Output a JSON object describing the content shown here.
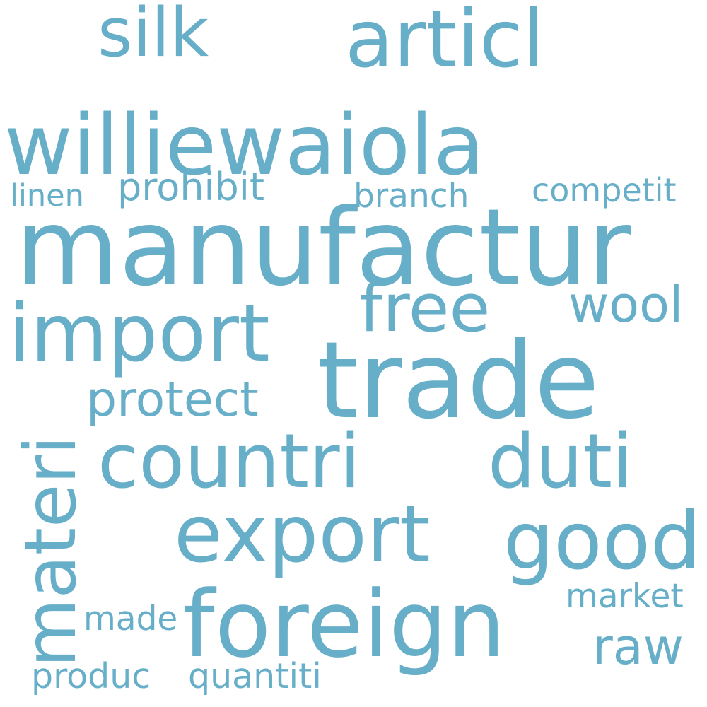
{
  "word_cloud": {
    "color": "#67aec8",
    "words": [
      {
        "text": "manufactur",
        "orientation": "horizontal"
      },
      {
        "text": "williewaiola",
        "orientation": "horizontal"
      },
      {
        "text": "trade",
        "orientation": "horizontal"
      },
      {
        "text": "foreign",
        "orientation": "horizontal"
      },
      {
        "text": "export",
        "orientation": "horizontal"
      },
      {
        "text": "import",
        "orientation": "horizontal"
      },
      {
        "text": "countri",
        "orientation": "horizontal"
      },
      {
        "text": "articl",
        "orientation": "horizontal"
      },
      {
        "text": "good",
        "orientation": "horizontal"
      },
      {
        "text": "materi",
        "orientation": "vertical"
      },
      {
        "text": "silk",
        "orientation": "horizontal"
      },
      {
        "text": "duti",
        "orientation": "horizontal"
      },
      {
        "text": "free",
        "orientation": "horizontal"
      },
      {
        "text": "protect",
        "orientation": "horizontal"
      },
      {
        "text": "raw",
        "orientation": "horizontal"
      },
      {
        "text": "wool",
        "orientation": "horizontal"
      },
      {
        "text": "prohibit",
        "orientation": "horizontal"
      },
      {
        "text": "quantiti",
        "orientation": "horizontal"
      },
      {
        "text": "market",
        "orientation": "horizontal"
      },
      {
        "text": "made",
        "orientation": "horizontal"
      },
      {
        "text": "produc",
        "orientation": "horizontal"
      },
      {
        "text": "branch",
        "orientation": "horizontal"
      },
      {
        "text": "competit",
        "orientation": "horizontal"
      },
      {
        "text": "linen",
        "orientation": "horizontal"
      }
    ]
  }
}
